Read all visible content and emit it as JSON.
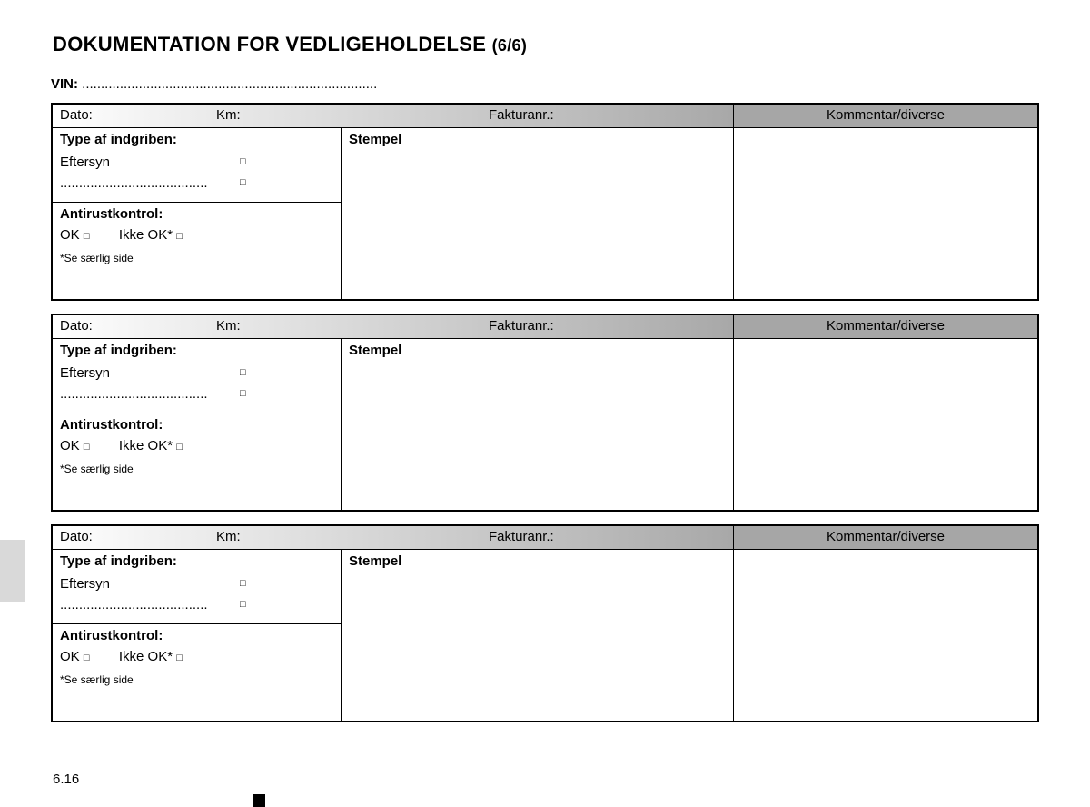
{
  "title_main": "DOKUMENTATION FOR VEDLIGEHOLDELSE",
  "title_sub": "(6/6)",
  "vin_label": "VIN:",
  "vin_dots": "..............................................................................",
  "header": {
    "dato": "Dato:",
    "km": "Km:",
    "fakturanr": "Fakturanr.:",
    "kommentar": "Kommentar/diverse"
  },
  "type_label": "Type af indgriben:",
  "eftersyn": "Eftersyn",
  "dots_line": ".......................................",
  "stempel": "Stempel",
  "anti_label": "Antirustkontrol:",
  "ok": "OK",
  "ikke_ok": "Ikke OK*",
  "note": "*Se særlig side",
  "checkbox_glyph": "□",
  "page_number": "6.16",
  "colors": {
    "border": "#000000",
    "gradient_from": "#ffffff",
    "gradient_to": "#a8a8a8",
    "kommentar_bg": "#a6a6a6",
    "side_tab": "#d9d9d9"
  }
}
